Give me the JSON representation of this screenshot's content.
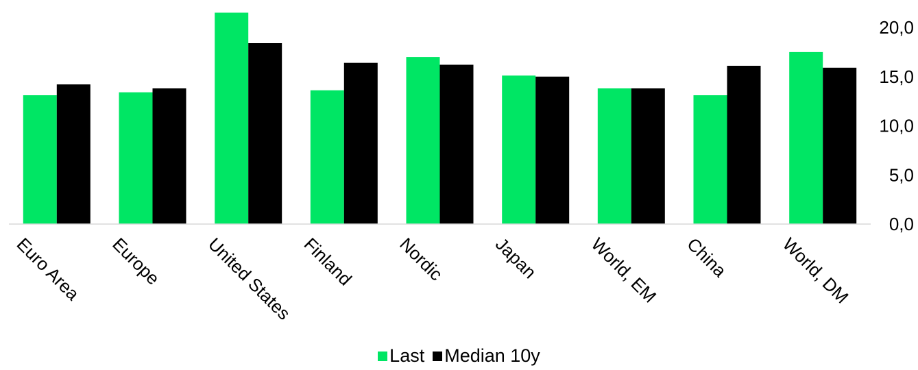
{
  "chart_data": {
    "type": "bar",
    "title": "",
    "xlabel": "",
    "ylabel": "",
    "categories": [
      "Euro Area",
      "Europe",
      "United States",
      "Finland",
      "Nordic",
      "Japan",
      "World, EM",
      "China",
      "World, DM"
    ],
    "series": [
      {
        "name": "Last",
        "color": "#00e664",
        "values": [
          13.1,
          13.4,
          21.5,
          13.6,
          17.0,
          15.1,
          13.8,
          13.1,
          17.5
        ]
      },
      {
        "name": "Median 10y",
        "color": "#000000",
        "values": [
          14.2,
          13.8,
          18.4,
          16.4,
          16.2,
          15.0,
          13.8,
          16.1,
          15.9
        ]
      }
    ],
    "ylim": [
      0,
      20
    ],
    "yticks": [
      "0,0",
      "5,0",
      "10,0",
      "15,0",
      "20,0"
    ],
    "ytick_values": [
      0,
      5,
      10,
      15,
      20
    ],
    "y_axis_side": "right",
    "grid": false,
    "legend_position": "bottom"
  }
}
